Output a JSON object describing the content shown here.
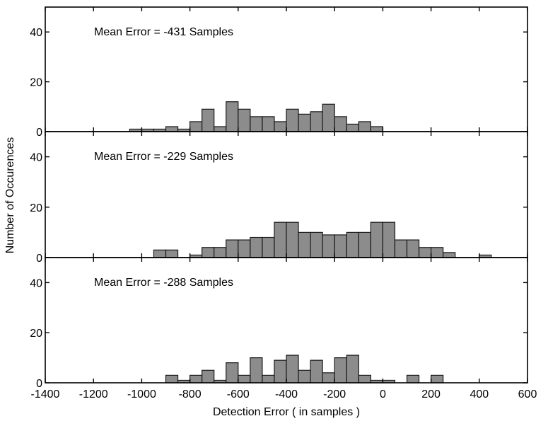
{
  "figure": {
    "ylabel": "Number of Occurences",
    "xlabel": "Detection Error ( in samples )"
  },
  "colors": {
    "bar_fill": "#8c8c8c",
    "bar_stroke": "#1a1a1a",
    "axis": "#000000"
  },
  "chart_data": [
    {
      "type": "bar",
      "annotation": "Mean Error = -431 Samples",
      "xlim": [
        -1400,
        600
      ],
      "ylim": [
        0,
        50
      ],
      "yticks": [
        "0",
        "20",
        "40"
      ],
      "bin_width": 50,
      "x": [
        -1050,
        -1000,
        -950,
        -900,
        -850,
        -800,
        -750,
        -700,
        -650,
        -600,
        -550,
        -500,
        -450,
        -400,
        -350,
        -300,
        -250,
        -200,
        -150,
        -100,
        -50,
        0
      ],
      "values": [
        1,
        1,
        1,
        2,
        1,
        4,
        9,
        2,
        12,
        9,
        6,
        6,
        4,
        9,
        7,
        8,
        11,
        6,
        3,
        4,
        2,
        0
      ]
    },
    {
      "type": "bar",
      "annotation": "Mean Error = -229 Samples",
      "xlim": [
        -1400,
        600
      ],
      "ylim": [
        0,
        50
      ],
      "yticks": [
        "0",
        "20",
        "40"
      ],
      "bin_width": 50,
      "x": [
        -950,
        -900,
        -850,
        -800,
        -750,
        -700,
        -650,
        -600,
        -550,
        -500,
        -450,
        -400,
        -350,
        -300,
        -250,
        -200,
        -150,
        -100,
        -50,
        0,
        50,
        100,
        150,
        200,
        250,
        300,
        350,
        400,
        450
      ],
      "values": [
        3,
        3,
        0,
        1,
        4,
        4,
        7,
        7,
        8,
        8,
        14,
        14,
        10,
        10,
        9,
        9,
        10,
        10,
        14,
        14,
        7,
        7,
        4,
        4,
        2,
        0,
        0,
        1,
        0
      ]
    },
    {
      "type": "bar",
      "annotation": "Mean Error = -288 Samples",
      "xlim": [
        -1400,
        600
      ],
      "ylim": [
        0,
        50
      ],
      "yticks": [
        "0",
        "20",
        "40"
      ],
      "xticks": [
        "-1400",
        "-1200",
        "-1000",
        "-800",
        "-600",
        "-400",
        "-200",
        "0",
        "200",
        "400",
        "600"
      ],
      "bin_width": 50,
      "x": [
        -900,
        -850,
        -800,
        -750,
        -700,
        -650,
        -600,
        -550,
        -500,
        -450,
        -400,
        -350,
        -300,
        -250,
        -200,
        -150,
        -100,
        -50,
        0,
        50,
        100,
        150,
        200,
        250,
        300
      ],
      "values": [
        3,
        1,
        3,
        5,
        1,
        8,
        3,
        10,
        3,
        9,
        11,
        5,
        9,
        4,
        10,
        11,
        3,
        1,
        1,
        0,
        3,
        0,
        3,
        0,
        0
      ]
    }
  ]
}
